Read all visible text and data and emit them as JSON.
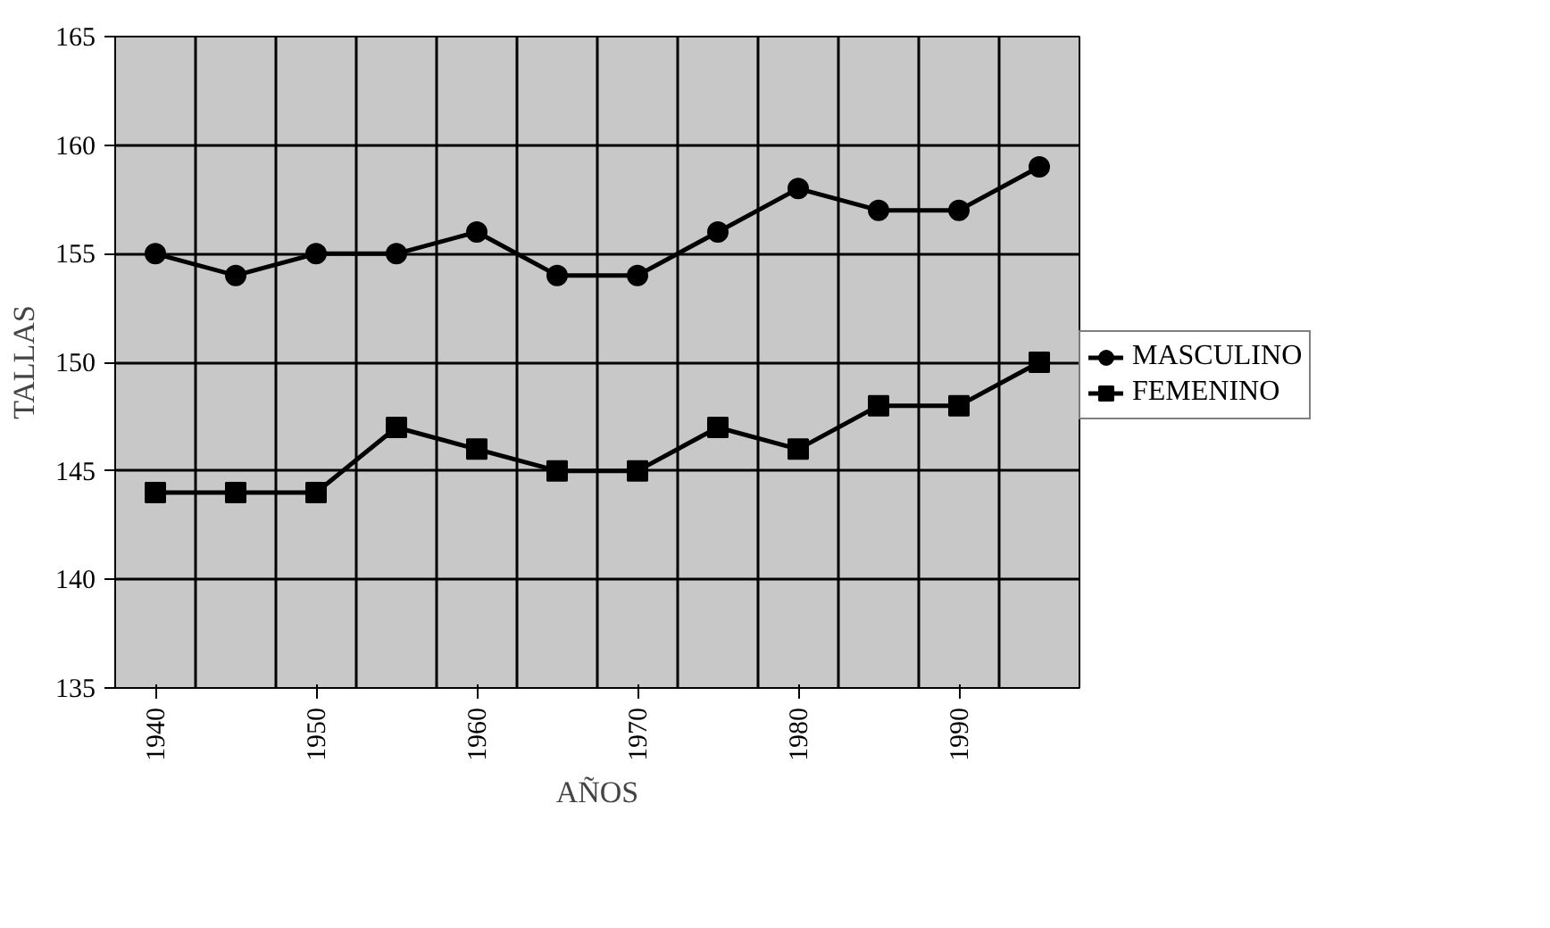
{
  "chart_data": {
    "type": "line",
    "xlabel": "AÑOS",
    "ylabel": "TALLAS",
    "categories": [
      "1940",
      null,
      "1950",
      null,
      "1960",
      null,
      "1970",
      null,
      "1980",
      null,
      "1990",
      null
    ],
    "series": [
      {
        "name": "MASCULINO",
        "color": "#000000",
        "marker": "circle",
        "values": [
          155,
          154,
          155,
          155,
          156,
          154,
          154,
          156,
          158,
          157,
          157,
          159
        ]
      },
      {
        "name": "FEMENINO",
        "color": "#000000",
        "marker": "square",
        "values": [
          144,
          144,
          144,
          147,
          146,
          145,
          145,
          147,
          146,
          148,
          148,
          150
        ]
      }
    ],
    "ylim": [
      135,
      165
    ],
    "yticks": [
      135,
      140,
      145,
      150,
      155,
      160,
      165
    ],
    "grid": true,
    "legend": "right"
  }
}
